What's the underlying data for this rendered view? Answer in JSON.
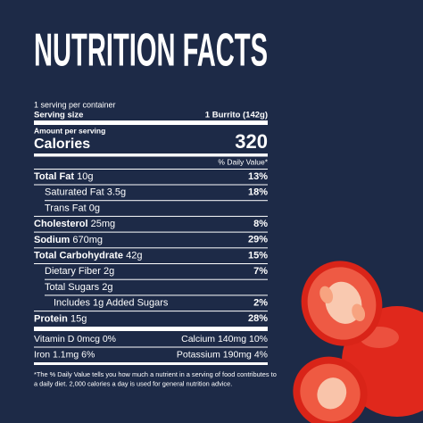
{
  "header": {
    "title": "NUTRITION FACTS"
  },
  "label": {
    "servings": "1 serving per container",
    "serving_size": {
      "label": "Serving size",
      "value": "1 Burrito (142g)"
    },
    "amount_per_serving": "Amount per serving",
    "calories": {
      "label": "Calories",
      "value": "320"
    },
    "dv_header": "% Daily Value*",
    "rows": [
      {
        "name": "Total Fat",
        "amount": "10g",
        "dv": "13%",
        "bold": true,
        "sub": 0
      },
      {
        "name": "Saturated Fat",
        "amount": "3.5g",
        "dv": "18%",
        "bold": false,
        "sub": 1
      },
      {
        "name": "Trans Fat",
        "amount": "0g",
        "dv": null,
        "bold": false,
        "sub": 1
      },
      {
        "name": "Cholesterol",
        "amount": "25mg",
        "dv": "8%",
        "bold": true,
        "sub": 0
      },
      {
        "name": "Sodium",
        "amount": "670mg",
        "dv": "29%",
        "bold": true,
        "sub": 0
      },
      {
        "name": "Total Carbohydrate",
        "amount": "42g",
        "dv": "15%",
        "bold": true,
        "sub": 0
      },
      {
        "name": "Dietary Fiber",
        "amount": "2g",
        "dv": "7%",
        "bold": false,
        "sub": 1
      },
      {
        "name": "Total Sugars",
        "amount": "2g",
        "dv": null,
        "bold": false,
        "sub": 1
      },
      {
        "name": "Includes 1g Added Sugars",
        "amount": null,
        "dv": "2%",
        "bold": false,
        "sub": 2
      },
      {
        "name": "Protein",
        "amount": "15g",
        "dv": "28%",
        "bold": true,
        "sub": 0
      }
    ],
    "vitamins": [
      [
        "Vitamin D 0mcg 0%",
        "Calcium 140mg 10%"
      ],
      [
        "Iron 1.1mg 6%",
        "Potassium 190mg 4%"
      ]
    ],
    "footnote": [
      "*The % Daily Value tells you how much a nutrient in a serving of food contributes to",
      "a daily diet. 2,000 calories a day is used for general nutrition advice."
    ]
  }
}
